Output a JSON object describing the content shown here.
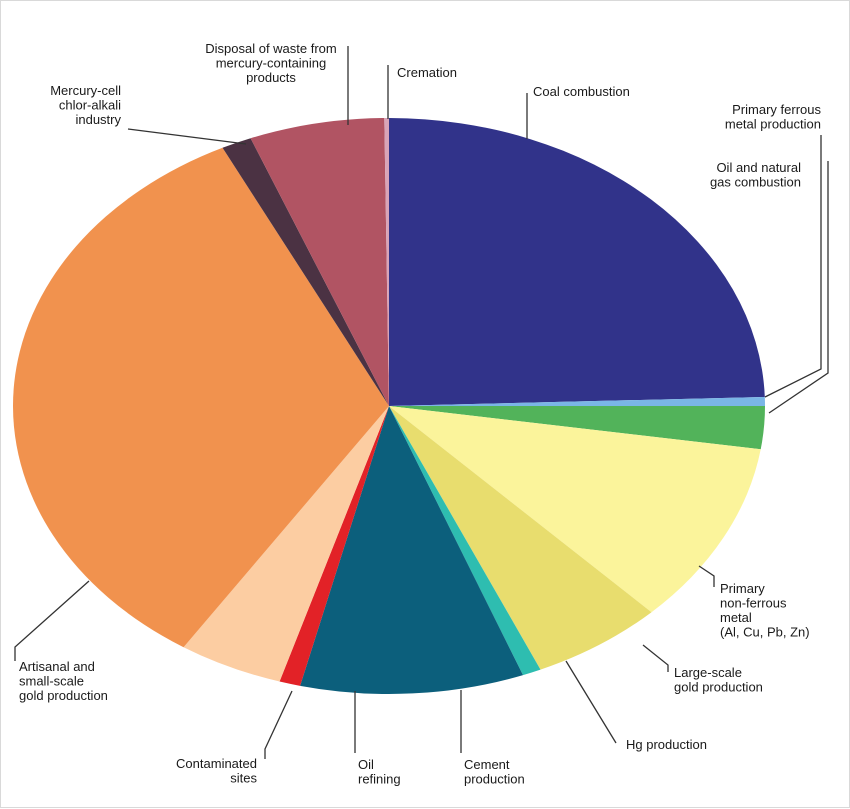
{
  "chart_data": {
    "type": "pie",
    "title": "",
    "start": "12 o'clock, clockwise",
    "slices": [
      {
        "name": "Coal combustion",
        "value": 24.5,
        "color": "#31338a",
        "label_lines": [
          "Coal combustion"
        ]
      },
      {
        "name": "Primary ferrous metal production",
        "value": 0.5,
        "color": "#7ab6e6",
        "label_lines": [
          "Primary ferrous",
          "metal production"
        ]
      },
      {
        "name": "Oil and natural gas combustion",
        "value": 2.4,
        "color": "#52b35a",
        "label_lines": [
          "Oil and natural",
          "gas combustion"
        ]
      },
      {
        "name": "Primary non-ferrous metal (Al, Cu, Pb, Zn)",
        "value": 10.3,
        "color": "#fbf49b",
        "label_lines": [
          "Primary",
          "non-ferrous",
          "metal",
          "(Al, Cu, Pb, Zn)"
        ]
      },
      {
        "name": "Large-scale gold production",
        "value": 5.7,
        "color": "#e8dd6e",
        "label_lines": [
          "Large-scale",
          "gold production"
        ]
      },
      {
        "name": "Hg production",
        "value": 0.8,
        "color": "#2ebdb0",
        "label_lines": [
          "Hg production"
        ]
      },
      {
        "name": "Cement production",
        "value": 9.6,
        "color": "#0c5f7c",
        "label_lines": [
          "Cement",
          "production"
        ]
      },
      {
        "name": "Oil refining",
        "value": 0.9,
        "color": "#e22227",
        "label_lines": [
          "Oil",
          "refining"
        ]
      },
      {
        "name": "Contaminated sites",
        "value": 4.5,
        "color": "#fccda2",
        "label_lines": [
          "Contaminated",
          "sites"
        ]
      },
      {
        "name": "Artisanal and small-scale gold production",
        "value": 33.5,
        "color": "#f1924e",
        "label_lines": [
          "Artisanal and",
          "small-scale",
          "gold production"
        ]
      },
      {
        "name": "Mercury-cell chlor-alkali industry",
        "value": 1.3,
        "color": "#4b3243",
        "label_lines": [
          "Mercury-cell",
          "chlor-alkali",
          "industry"
        ]
      },
      {
        "name": "Disposal of waste from mercury-containing products",
        "value": 5.8,
        "color": "#b15463",
        "label_lines": [
          "Disposal of waste from",
          "mercury-containing",
          "products"
        ]
      },
      {
        "name": "Cremation",
        "value": 0.2,
        "color": "#d9a4b8",
        "label_lines": [
          "Cremation"
        ]
      }
    ],
    "legend": "none (direct labels with leader lines)"
  }
}
